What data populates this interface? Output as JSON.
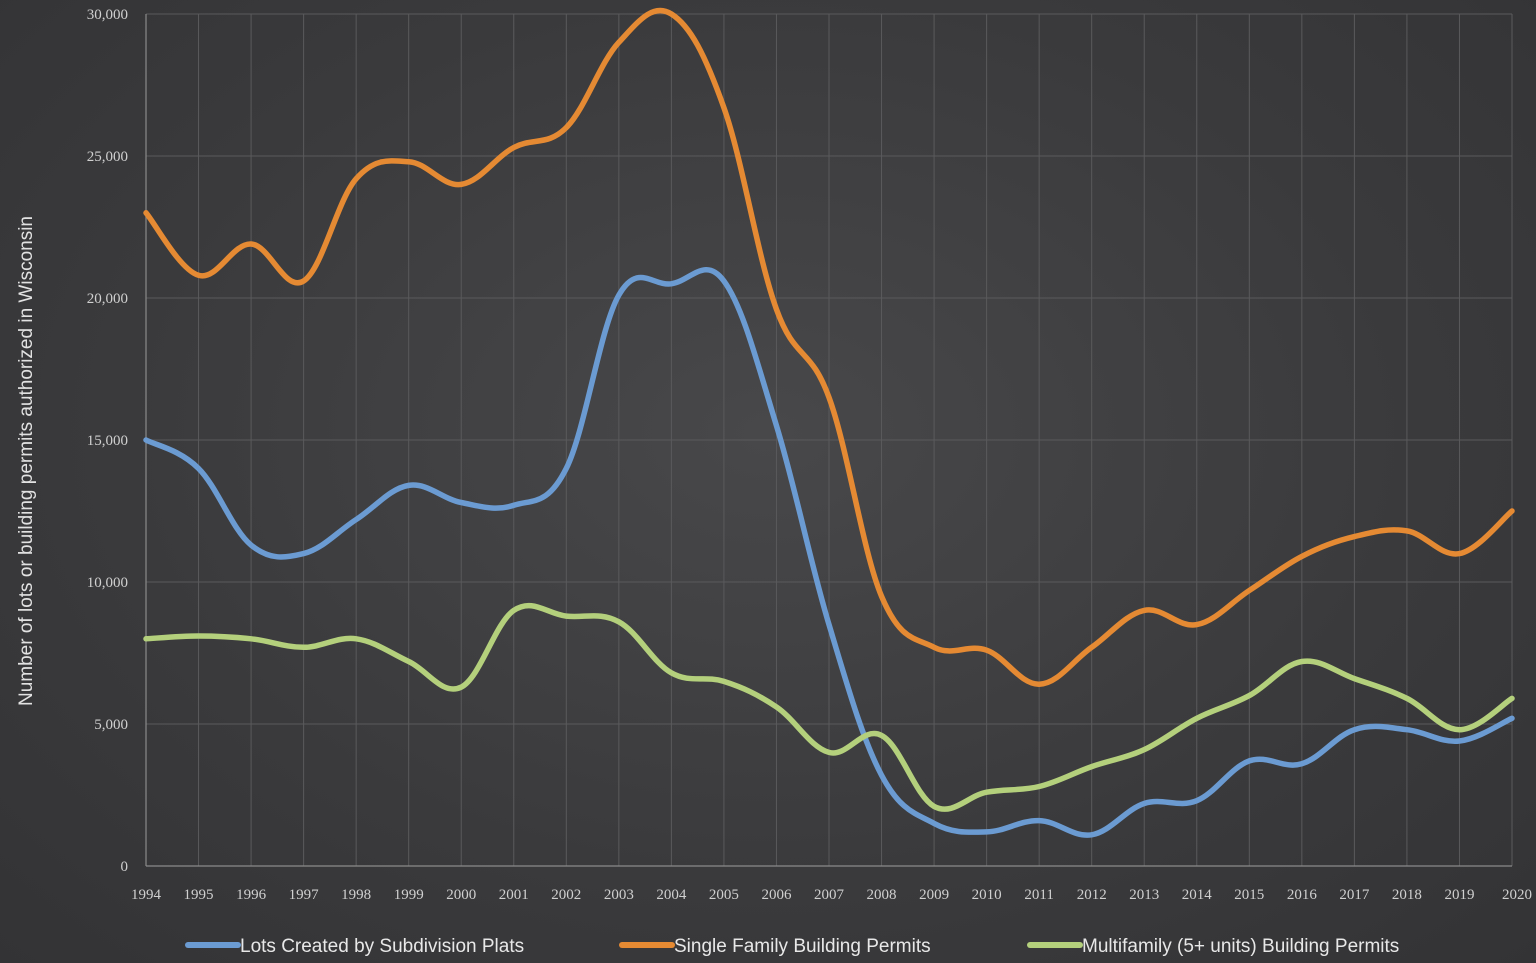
{
  "chart_data": {
    "type": "line",
    "ylabel": "Number of lots or building permits authorized in Wisconsin",
    "xlabel": "",
    "ylim": [
      0,
      30000
    ],
    "yticks": [
      0,
      5000,
      10000,
      15000,
      20000,
      25000,
      30000
    ],
    "ytick_labels": [
      "0",
      "5,000",
      "10,000",
      "15,000",
      "20,000",
      "25,000",
      "30,000"
    ],
    "x": [
      "1994",
      "1995",
      "1996",
      "1997",
      "1998",
      "1999",
      "2000",
      "2001",
      "2002",
      "2003",
      "2004",
      "2005",
      "2006",
      "2007",
      "2008",
      "2009",
      "2010",
      "2011",
      "2012",
      "2013",
      "2014",
      "2015",
      "2016",
      "2017",
      "2018",
      "2019",
      "2020"
    ],
    "grid": true,
    "legend_position": "bottom",
    "series": [
      {
        "name": "Lots Created by Subdivision Plats",
        "color": "#6b9bd2",
        "values": [
          15000,
          14000,
          11300,
          11000,
          12200,
          13400,
          12800,
          12700,
          14000,
          20100,
          20500,
          20600,
          15500,
          8500,
          3200,
          1500,
          1200,
          1600,
          1100,
          2200,
          2300,
          3700,
          3600,
          4800,
          4800,
          4400,
          5200
        ]
      },
      {
        "name": "Single Family Building Permits",
        "color": "#e58a33",
        "values": [
          23000,
          20800,
          21900,
          20600,
          24200,
          24800,
          24000,
          25300,
          26000,
          29000,
          30000,
          26700,
          19600,
          16500,
          9500,
          7700,
          7600,
          6400,
          7700,
          9000,
          8500,
          9700,
          10900,
          11600,
          11800,
          11000,
          12500
        ]
      },
      {
        "name": "Multifamily (5+ units) Building Permits",
        "color": "#b4d07c",
        "values": [
          8000,
          8100,
          8000,
          7700,
          8000,
          7200,
          6300,
          9000,
          8800,
          8600,
          6800,
          6500,
          5600,
          4000,
          4600,
          2100,
          2600,
          2800,
          3500,
          4100,
          5200,
          6000,
          7200,
          6600,
          5900,
          4800,
          5900
        ]
      }
    ]
  }
}
